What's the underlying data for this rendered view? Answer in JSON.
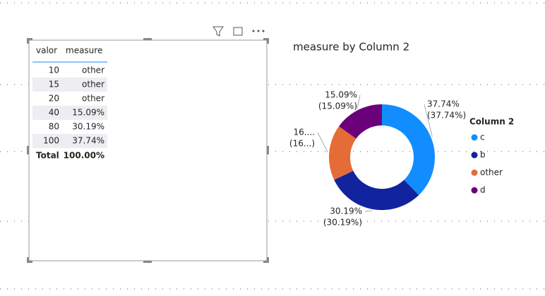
{
  "table": {
    "headers": [
      "valor",
      "measure"
    ],
    "rows": [
      [
        10,
        "other"
      ],
      [
        15,
        "other"
      ],
      [
        20,
        "other"
      ],
      [
        40,
        "15.09%"
      ],
      [
        80,
        "30.19%"
      ],
      [
        100,
        "37.74%"
      ]
    ],
    "total": [
      "Total",
      "100.00%"
    ]
  },
  "chart_data": {
    "type": "donut",
    "title": "measure by Column 2",
    "legend_title": "Column 2",
    "categories": [
      "c",
      "b",
      "other",
      "d"
    ],
    "values": [
      37.74,
      30.19,
      16.98,
      15.09
    ],
    "value_labels": [
      "37.74%",
      "30.19%",
      "16....",
      "15.09%"
    ],
    "percent_labels": [
      "(37.74%)",
      "(30.19%)",
      "(16...)",
      "(15.09%)"
    ],
    "colors": [
      "#118DFF",
      "#12239E",
      "#E66C37",
      "#6B007B"
    ],
    "legend": "right"
  }
}
